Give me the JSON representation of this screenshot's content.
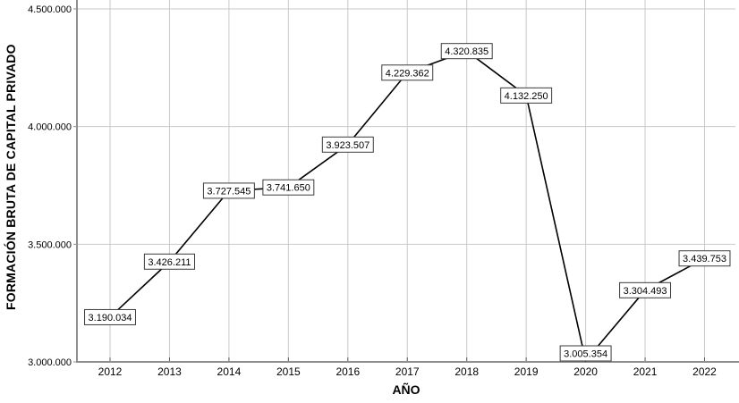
{
  "chart_data": {
    "type": "line",
    "title": "",
    "xlabel": "AÑO",
    "ylabel": "FORMACIÓN BRUTA DE CAPITAL PRIVADO",
    "categories": [
      "2012",
      "2013",
      "2014",
      "2015",
      "2016",
      "2017",
      "2018",
      "2019",
      "2020",
      "2021",
      "2022"
    ],
    "series": [
      {
        "name": "FORMACIÓN BRUTA DE CAPITAL PRIVADO",
        "values": [
          3190034,
          3426211,
          3727545,
          3741650,
          3923507,
          4229362,
          4320835,
          4132250,
          3005354,
          3304493,
          3439753
        ],
        "point_labels": [
          "3.190.034",
          "3.426.211",
          "3.727.545",
          "3.741.650",
          "3.923.507",
          "4.229.362",
          "4.320.835",
          "4.132.250",
          "3.005.354",
          "3.304.493",
          "3.439.753"
        ]
      }
    ],
    "y_ticks": {
      "values": [
        3000000,
        3500000,
        4000000,
        4500000
      ],
      "labels": [
        "3.000.000",
        "3.500.000",
        "4.000.000",
        "4.500.000"
      ]
    },
    "ylim": [
      3000000,
      4500000
    ],
    "grid": true,
    "legend_position": "none",
    "colors": {
      "line": "#000000",
      "grid": "#c9c9c9",
      "axis": "#8f8f8f",
      "tick": "#5a5a5a",
      "label_box_fill": "#ffffff",
      "label_box_border": "#3a3a3a",
      "background": "#ffffff"
    }
  }
}
